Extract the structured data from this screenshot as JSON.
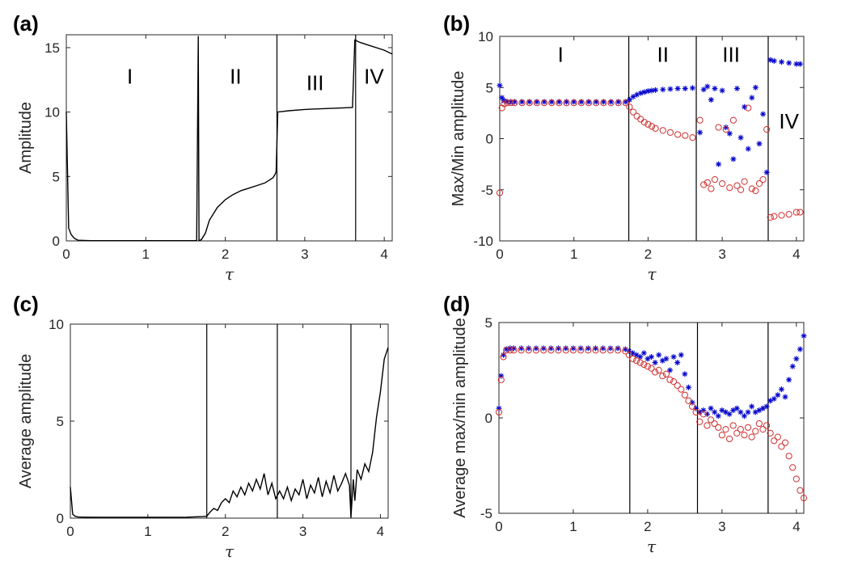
{
  "chart_data": [
    {
      "id": "a",
      "type": "line",
      "panel_label": "(a)",
      "xlabel": "τ",
      "ylabel": "Amplitude",
      "xlim": [
        0,
        4.1
      ],
      "ylim": [
        0,
        16
      ],
      "xticks": [
        "0",
        "1",
        "2",
        "3",
        "4"
      ],
      "yticks": [
        "0",
        "5",
        "10",
        "15"
      ],
      "xtick_values": [
        0,
        1,
        2,
        3,
        4
      ],
      "ytick_values": [
        0,
        5,
        10,
        15
      ],
      "regions": [
        {
          "label": "I",
          "x": 0.8,
          "y": 12.2
        },
        {
          "label": "II",
          "x": 2.13,
          "y": 12.2
        },
        {
          "label": "III",
          "x": 3.13,
          "y": 11.7
        },
        {
          "label": "IV",
          "x": 3.87,
          "y": 12.2
        }
      ],
      "series": [
        {
          "name": "amplitude",
          "x": [
            0,
            0.03,
            0.06,
            0.1,
            0.15,
            0.3,
            0.6,
            1.0,
            1.3,
            1.6,
            1.64,
            1.66,
            1.67,
            1.7,
            1.75,
            1.8,
            1.9,
            2.0,
            2.1,
            2.2,
            2.3,
            2.4,
            2.5,
            2.6,
            2.63,
            2.64,
            2.66,
            2.8,
            3.0,
            3.2,
            3.4,
            3.6,
            3.63,
            3.64,
            3.66,
            3.7,
            3.8,
            4.0,
            4.1
          ],
          "values": [
            10.0,
            1.0,
            0.5,
            0.2,
            0.05,
            0.02,
            0.02,
            0.02,
            0.02,
            0.02,
            0.02,
            15.9,
            0.02,
            0.1,
            0.6,
            1.6,
            2.6,
            3.2,
            3.6,
            3.9,
            4.1,
            4.3,
            4.5,
            4.9,
            5.2,
            5.4,
            10.0,
            10.1,
            10.2,
            10.25,
            10.3,
            10.35,
            15.6,
            15.6,
            15.5,
            15.4,
            15.2,
            14.8,
            14.5
          ]
        }
      ],
      "vlines": [
        2.65,
        3.64
      ]
    },
    {
      "id": "b",
      "type": "scatter",
      "panel_label": "(b)",
      "xlabel": "τ",
      "ylabel": "Max/Min amplitude",
      "xlim": [
        0,
        4.1
      ],
      "ylim": [
        -10,
        10
      ],
      "xticks": [
        "0",
        "1",
        "2",
        "3",
        "4"
      ],
      "yticks": [
        "-10",
        "-5",
        "0",
        "5",
        "10"
      ],
      "xtick_values": [
        0,
        1,
        2,
        3,
        4
      ],
      "ytick_values": [
        -10,
        -5,
        0,
        5,
        10
      ],
      "vlines": [
        1.74,
        2.65,
        3.62
      ],
      "regions": [
        {
          "label": "I",
          "x": 0.82,
          "y": 7.5
        },
        {
          "label": "II",
          "x": 2.2,
          "y": 7.5
        },
        {
          "label": "III",
          "x": 3.12,
          "y": 7.5
        },
        {
          "label": "IV",
          "x": 3.9,
          "y": 1.0
        }
      ],
      "series": [
        {
          "name": "max",
          "marker": "star",
          "color": "#0000cc",
          "x": [
            0.0,
            0.03,
            0.06,
            0.1,
            0.15,
            0.2,
            0.3,
            0.4,
            0.5,
            0.6,
            0.7,
            0.8,
            0.9,
            1.0,
            1.1,
            1.2,
            1.3,
            1.4,
            1.5,
            1.6,
            1.7,
            1.75,
            1.8,
            1.85,
            1.9,
            1.95,
            2.0,
            2.05,
            2.1,
            2.2,
            2.3,
            2.4,
            2.5,
            2.6,
            2.7,
            2.75,
            2.8,
            2.85,
            2.9,
            2.95,
            3.0,
            3.05,
            3.1,
            3.15,
            3.2,
            3.25,
            3.3,
            3.35,
            3.4,
            3.45,
            3.5,
            3.55,
            3.6,
            3.65,
            3.7,
            3.8,
            3.9,
            4.0,
            4.05
          ],
          "values": [
            5.2,
            4.0,
            3.7,
            3.6,
            3.6,
            3.6,
            3.6,
            3.6,
            3.6,
            3.6,
            3.6,
            3.6,
            3.6,
            3.6,
            3.6,
            3.6,
            3.6,
            3.6,
            3.6,
            3.6,
            3.6,
            3.8,
            4.1,
            4.3,
            4.45,
            4.55,
            4.65,
            4.7,
            4.75,
            4.8,
            4.85,
            4.9,
            4.9,
            4.95,
            0.6,
            4.8,
            5.1,
            3.8,
            4.9,
            -2.5,
            4.7,
            1.1,
            0.5,
            -2.0,
            4.9,
            0.1,
            3.1,
            -1.0,
            4.0,
            5.0,
            -0.5,
            2.4,
            -3.3,
            7.7,
            7.6,
            7.5,
            7.4,
            7.3,
            7.3
          ]
        },
        {
          "name": "min",
          "marker": "circle",
          "color": "#d03030",
          "x": [
            0.0,
            0.03,
            0.06,
            0.1,
            0.15,
            0.2,
            0.3,
            0.4,
            0.5,
            0.6,
            0.7,
            0.8,
            0.9,
            1.0,
            1.1,
            1.2,
            1.3,
            1.4,
            1.5,
            1.6,
            1.7,
            1.75,
            1.8,
            1.85,
            1.9,
            1.95,
            2.0,
            2.05,
            2.1,
            2.2,
            2.3,
            2.4,
            2.5,
            2.6,
            2.7,
            2.75,
            2.8,
            2.85,
            2.9,
            2.95,
            3.0,
            3.05,
            3.1,
            3.15,
            3.2,
            3.25,
            3.3,
            3.35,
            3.4,
            3.45,
            3.5,
            3.55,
            3.6,
            3.65,
            3.7,
            3.8,
            3.9,
            4.0,
            4.05
          ],
          "values": [
            -5.3,
            3.0,
            3.4,
            3.5,
            3.5,
            3.5,
            3.5,
            3.5,
            3.5,
            3.5,
            3.5,
            3.5,
            3.5,
            3.5,
            3.5,
            3.5,
            3.5,
            3.5,
            3.5,
            3.5,
            3.5,
            3.1,
            2.6,
            2.2,
            1.9,
            1.6,
            1.4,
            1.2,
            1.0,
            0.8,
            0.6,
            0.4,
            0.3,
            0.1,
            1.8,
            -4.5,
            -4.3,
            -4.9,
            -4.0,
            1.1,
            -4.4,
            0.9,
            -4.8,
            1.8,
            -4.6,
            -5.0,
            -4.2,
            3.0,
            -4.9,
            -5.1,
            -4.4,
            -4.0,
            0.9,
            -7.7,
            -7.6,
            -7.5,
            -7.4,
            -7.2,
            -7.2
          ]
        }
      ]
    },
    {
      "id": "c",
      "type": "line",
      "panel_label": "(c)",
      "xlabel": "τ",
      "ylabel": "Average amplitude",
      "xlim": [
        0,
        4.1
      ],
      "ylim": [
        0,
        10
      ],
      "xticks": [
        "0",
        "1",
        "2",
        "3",
        "4"
      ],
      "yticks": [
        "0",
        "5",
        "10"
      ],
      "xtick_values": [
        0,
        1,
        2,
        3,
        4
      ],
      "ytick_values": [
        0,
        5,
        10
      ],
      "vlines": [
        1.76,
        2.67,
        3.62
      ],
      "series": [
        {
          "name": "average amplitude",
          "x": [
            0,
            0.03,
            0.06,
            0.1,
            0.2,
            0.5,
            1.0,
            1.5,
            1.7,
            1.76,
            1.8,
            1.85,
            1.9,
            1.95,
            2.0,
            2.05,
            2.1,
            2.15,
            2.2,
            2.25,
            2.3,
            2.35,
            2.4,
            2.45,
            2.5,
            2.55,
            2.6,
            2.65,
            2.7,
            2.75,
            2.8,
            2.85,
            2.9,
            2.95,
            3.0,
            3.05,
            3.1,
            3.15,
            3.2,
            3.25,
            3.3,
            3.35,
            3.4,
            3.45,
            3.5,
            3.55,
            3.6,
            3.62,
            3.65,
            3.67,
            3.7,
            3.75,
            3.8,
            3.85,
            3.9,
            3.95,
            4.0,
            4.05,
            4.1
          ],
          "values": [
            1.6,
            0.2,
            0.1,
            0.06,
            0.05,
            0.04,
            0.04,
            0.05,
            0.08,
            0.1,
            0.3,
            0.5,
            0.4,
            0.8,
            1.0,
            0.8,
            1.4,
            1.1,
            1.6,
            1.2,
            1.8,
            1.4,
            2.0,
            1.5,
            2.3,
            1.2,
            1.8,
            1.0,
            1.4,
            1.0,
            1.6,
            0.9,
            1.5,
            1.2,
            2.0,
            1.0,
            1.7,
            1.3,
            2.1,
            1.1,
            1.9,
            1.3,
            2.2,
            1.4,
            1.8,
            2.3,
            1.7,
            0.05,
            2.0,
            0.9,
            2.5,
            2.0,
            2.8,
            2.4,
            3.4,
            5.2,
            6.5,
            8.2,
            8.8
          ]
        }
      ]
    },
    {
      "id": "d",
      "type": "scatter",
      "panel_label": "(d)",
      "xlabel": "τ",
      "ylabel": "Average max/min amplitude",
      "xlim": [
        0,
        4.1
      ],
      "ylim": [
        -5,
        5
      ],
      "xticks": [
        "0",
        "1",
        "2",
        "3",
        "4"
      ],
      "yticks": [
        "-5",
        "0",
        "5"
      ],
      "xtick_values": [
        0,
        1,
        2,
        3,
        4
      ],
      "ytick_values": [
        -5,
        0,
        5
      ],
      "vlines": [
        1.76,
        2.67,
        3.62
      ],
      "series": [
        {
          "name": "average max",
          "marker": "star",
          "color": "#0000cc",
          "x": [
            0.0,
            0.03,
            0.06,
            0.1,
            0.15,
            0.2,
            0.3,
            0.4,
            0.5,
            0.6,
            0.7,
            0.8,
            0.9,
            1.0,
            1.1,
            1.2,
            1.3,
            1.4,
            1.5,
            1.6,
            1.7,
            1.75,
            1.8,
            1.85,
            1.9,
            1.95,
            2.0,
            2.05,
            2.1,
            2.15,
            2.2,
            2.25,
            2.3,
            2.35,
            2.4,
            2.45,
            2.5,
            2.55,
            2.6,
            2.65,
            2.7,
            2.75,
            2.8,
            2.85,
            2.9,
            2.95,
            3.0,
            3.05,
            3.1,
            3.15,
            3.2,
            3.25,
            3.3,
            3.35,
            3.4,
            3.45,
            3.5,
            3.55,
            3.6,
            3.65,
            3.7,
            3.75,
            3.8,
            3.85,
            3.9,
            3.95,
            4.0,
            4.05,
            4.1
          ],
          "values": [
            0.5,
            2.2,
            3.3,
            3.6,
            3.65,
            3.65,
            3.65,
            3.65,
            3.65,
            3.65,
            3.65,
            3.65,
            3.65,
            3.65,
            3.65,
            3.65,
            3.65,
            3.65,
            3.65,
            3.65,
            3.6,
            3.5,
            3.4,
            3.3,
            3.2,
            3.4,
            3.1,
            3.2,
            2.9,
            3.3,
            3.0,
            3.1,
            2.5,
            3.2,
            2.9,
            3.3,
            2.3,
            1.6,
            0.8,
            0.5,
            0.3,
            0.4,
            0.2,
            0.5,
            0.3,
            0.1,
            0.4,
            0.3,
            0.2,
            0.4,
            0.5,
            0.3,
            0.1,
            0.3,
            0.6,
            0.3,
            0.4,
            0.5,
            0.6,
            0.9,
            1.0,
            1.2,
            1.5,
            1.1,
            2.0,
            2.7,
            3.1,
            3.6,
            4.3
          ]
        },
        {
          "name": "average min",
          "marker": "circle",
          "color": "#d03030",
          "x": [
            0.0,
            0.03,
            0.06,
            0.1,
            0.15,
            0.2,
            0.3,
            0.4,
            0.5,
            0.6,
            0.7,
            0.8,
            0.9,
            1.0,
            1.1,
            1.2,
            1.3,
            1.4,
            1.5,
            1.6,
            1.7,
            1.75,
            1.8,
            1.85,
            1.9,
            1.95,
            2.0,
            2.05,
            2.1,
            2.15,
            2.2,
            2.25,
            2.3,
            2.35,
            2.4,
            2.45,
            2.5,
            2.55,
            2.6,
            2.65,
            2.7,
            2.75,
            2.8,
            2.85,
            2.9,
            2.95,
            3.0,
            3.05,
            3.1,
            3.15,
            3.2,
            3.25,
            3.3,
            3.35,
            3.4,
            3.45,
            3.5,
            3.55,
            3.6,
            3.65,
            3.7,
            3.75,
            3.8,
            3.85,
            3.9,
            3.95,
            4.0,
            4.05,
            4.1
          ],
          "values": [
            0.3,
            2.0,
            3.2,
            3.55,
            3.55,
            3.55,
            3.55,
            3.55,
            3.55,
            3.55,
            3.55,
            3.55,
            3.55,
            3.55,
            3.55,
            3.55,
            3.55,
            3.55,
            3.55,
            3.55,
            3.5,
            3.3,
            3.1,
            3.0,
            2.9,
            2.8,
            2.7,
            2.6,
            2.4,
            2.5,
            2.2,
            2.3,
            2.0,
            1.9,
            1.7,
            1.5,
            1.2,
            0.9,
            0.6,
            0.3,
            -0.2,
            0.2,
            -0.4,
            -0.1,
            -0.3,
            -0.5,
            -0.9,
            -0.6,
            -1.1,
            -0.4,
            -0.8,
            -0.6,
            -0.9,
            -0.5,
            -1.0,
            -0.7,
            -0.3,
            -0.6,
            -0.4,
            -0.8,
            -1.2,
            -1.0,
            -1.5,
            -1.3,
            -2.0,
            -2.6,
            -3.2,
            -3.8,
            -4.2
          ]
        }
      ]
    }
  ]
}
